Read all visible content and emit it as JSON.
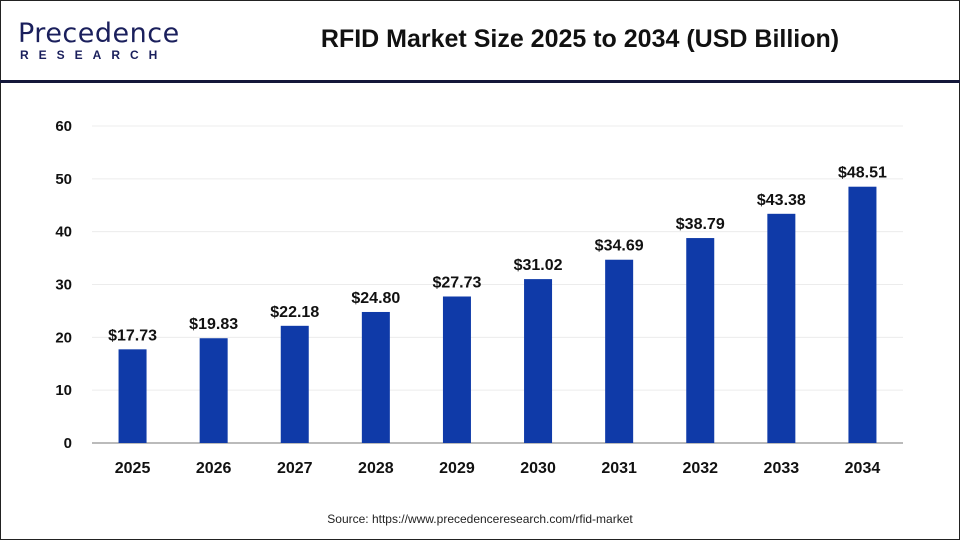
{
  "header": {
    "logo_text": "Precedence",
    "logo_subtext": "RESEARCH",
    "title": "RFID Market Size 2025 to 2034 (USD Billion)"
  },
  "source": "Source: https://www.precedenceresearch.com/rfid-market",
  "colors": {
    "bar": "#0f3aa8",
    "header_rule": "#14173a"
  },
  "chart_data": {
    "type": "bar",
    "title": "RFID Market Size 2025 to 2034 (USD Billion)",
    "categories": [
      "2025",
      "2026",
      "2027",
      "2028",
      "2029",
      "2030",
      "2031",
      "2032",
      "2033",
      "2034"
    ],
    "values": [
      17.73,
      19.83,
      22.18,
      24.8,
      27.73,
      31.02,
      34.69,
      38.79,
      43.38,
      48.51
    ],
    "data_labels": [
      "$17.73",
      "$19.83",
      "$22.18",
      "$24.80",
      "$27.73",
      "$31.02",
      "$34.69",
      "$38.79",
      "$43.38",
      "$48.51"
    ],
    "ylim": [
      0,
      60
    ],
    "yticks": [
      0,
      10,
      20,
      30,
      40,
      50,
      60
    ],
    "grid": true,
    "xlabel": "",
    "ylabel": ""
  }
}
